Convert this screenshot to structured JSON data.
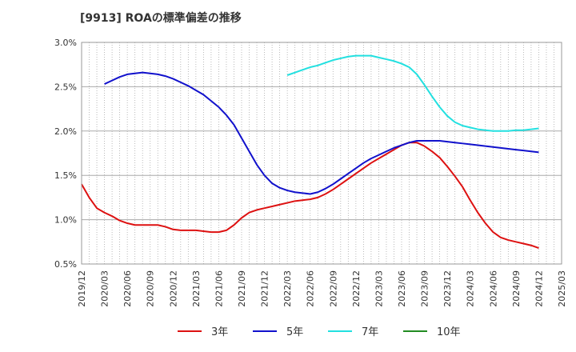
{
  "chart_data": {
    "type": "line",
    "title": "[9913]  ROAの標準偏差の推移",
    "xlabel": "",
    "ylabel": "",
    "x_range": [
      "2019-12",
      "2025-03"
    ],
    "ylim": [
      0.5,
      3.0
    ],
    "y_ticks": [
      {
        "value": 0.5,
        "label": "0.5%"
      },
      {
        "value": 1.0,
        "label": "1.0%"
      },
      {
        "value": 1.5,
        "label": "1.5%"
      },
      {
        "value": 2.0,
        "label": "2.0%"
      },
      {
        "value": 2.5,
        "label": "2.5%"
      },
      {
        "value": 3.0,
        "label": "3.0%"
      }
    ],
    "x_ticks": [
      "2019/12",
      "2020/03",
      "2020/06",
      "2020/09",
      "2020/12",
      "2021/03",
      "2021/06",
      "2021/09",
      "2021/12",
      "2022/03",
      "2022/06",
      "2022/09",
      "2022/12",
      "2023/03",
      "2023/06",
      "2023/09",
      "2023/12",
      "2024/03",
      "2024/06",
      "2024/09",
      "2024/12",
      "2025/03"
    ],
    "grid": true,
    "legend_position": "bottom",
    "series": [
      {
        "name": "3年",
        "color": "#dd1111",
        "points": [
          [
            "2019-12",
            1.4
          ],
          [
            "2020-01",
            1.25
          ],
          [
            "2020-02",
            1.13
          ],
          [
            "2020-03",
            1.08
          ],
          [
            "2020-04",
            1.04
          ],
          [
            "2020-05",
            0.99
          ],
          [
            "2020-06",
            0.96
          ],
          [
            "2020-07",
            0.94
          ],
          [
            "2020-08",
            0.94
          ],
          [
            "2020-09",
            0.94
          ],
          [
            "2020-10",
            0.94
          ],
          [
            "2020-11",
            0.92
          ],
          [
            "2020-12",
            0.89
          ],
          [
            "2021-01",
            0.88
          ],
          [
            "2021-02",
            0.88
          ],
          [
            "2021-03",
            0.88
          ],
          [
            "2021-04",
            0.87
          ],
          [
            "2021-05",
            0.86
          ],
          [
            "2021-06",
            0.86
          ],
          [
            "2021-07",
            0.88
          ],
          [
            "2021-08",
            0.94
          ],
          [
            "2021-09",
            1.02
          ],
          [
            "2021-10",
            1.08
          ],
          [
            "2021-11",
            1.11
          ],
          [
            "2021-12",
            1.13
          ],
          [
            "2022-01",
            1.15
          ],
          [
            "2022-02",
            1.17
          ],
          [
            "2022-03",
            1.19
          ],
          [
            "2022-04",
            1.21
          ],
          [
            "2022-05",
            1.22
          ],
          [
            "2022-06",
            1.23
          ],
          [
            "2022-07",
            1.25
          ],
          [
            "2022-08",
            1.29
          ],
          [
            "2022-09",
            1.34
          ],
          [
            "2022-10",
            1.4
          ],
          [
            "2022-11",
            1.46
          ],
          [
            "2022-12",
            1.52
          ],
          [
            "2023-01",
            1.58
          ],
          [
            "2023-02",
            1.64
          ],
          [
            "2023-03",
            1.69
          ],
          [
            "2023-04",
            1.74
          ],
          [
            "2023-05",
            1.79
          ],
          [
            "2023-06",
            1.84
          ],
          [
            "2023-07",
            1.87
          ],
          [
            "2023-08",
            1.87
          ],
          [
            "2023-09",
            1.83
          ],
          [
            "2023-10",
            1.77
          ],
          [
            "2023-11",
            1.7
          ],
          [
            "2023-12",
            1.6
          ],
          [
            "2024-01",
            1.49
          ],
          [
            "2024-02",
            1.37
          ],
          [
            "2024-03",
            1.22
          ],
          [
            "2024-04",
            1.08
          ],
          [
            "2024-05",
            0.96
          ],
          [
            "2024-06",
            0.86
          ],
          [
            "2024-07",
            0.8
          ],
          [
            "2024-08",
            0.77
          ],
          [
            "2024-09",
            0.75
          ],
          [
            "2024-10",
            0.73
          ],
          [
            "2024-11",
            0.71
          ],
          [
            "2024-12",
            0.68
          ]
        ]
      },
      {
        "name": "5年",
        "color": "#1111cc",
        "points": [
          [
            "2020-03",
            2.53
          ],
          [
            "2020-04",
            2.57
          ],
          [
            "2020-05",
            2.61
          ],
          [
            "2020-06",
            2.64
          ],
          [
            "2020-07",
            2.65
          ],
          [
            "2020-08",
            2.66
          ],
          [
            "2020-09",
            2.65
          ],
          [
            "2020-10",
            2.64
          ],
          [
            "2020-11",
            2.62
          ],
          [
            "2020-12",
            2.59
          ],
          [
            "2021-01",
            2.55
          ],
          [
            "2021-02",
            2.51
          ],
          [
            "2021-03",
            2.46
          ],
          [
            "2021-04",
            2.41
          ],
          [
            "2021-05",
            2.34
          ],
          [
            "2021-06",
            2.27
          ],
          [
            "2021-07",
            2.18
          ],
          [
            "2021-08",
            2.07
          ],
          [
            "2021-09",
            1.92
          ],
          [
            "2021-10",
            1.77
          ],
          [
            "2021-11",
            1.62
          ],
          [
            "2021-12",
            1.5
          ],
          [
            "2022-01",
            1.41
          ],
          [
            "2022-02",
            1.36
          ],
          [
            "2022-03",
            1.33
          ],
          [
            "2022-04",
            1.31
          ],
          [
            "2022-05",
            1.3
          ],
          [
            "2022-06",
            1.29
          ],
          [
            "2022-07",
            1.31
          ],
          [
            "2022-08",
            1.35
          ],
          [
            "2022-09",
            1.4
          ],
          [
            "2022-10",
            1.46
          ],
          [
            "2022-11",
            1.52
          ],
          [
            "2022-12",
            1.58
          ],
          [
            "2023-01",
            1.64
          ],
          [
            "2023-02",
            1.69
          ],
          [
            "2023-03",
            1.73
          ],
          [
            "2023-04",
            1.77
          ],
          [
            "2023-05",
            1.81
          ],
          [
            "2023-06",
            1.84
          ],
          [
            "2023-07",
            1.87
          ],
          [
            "2023-08",
            1.89
          ],
          [
            "2023-09",
            1.89
          ],
          [
            "2023-10",
            1.89
          ],
          [
            "2023-11",
            1.89
          ],
          [
            "2023-12",
            1.88
          ],
          [
            "2024-01",
            1.87
          ],
          [
            "2024-02",
            1.86
          ],
          [
            "2024-03",
            1.85
          ],
          [
            "2024-04",
            1.84
          ],
          [
            "2024-05",
            1.83
          ],
          [
            "2024-06",
            1.82
          ],
          [
            "2024-07",
            1.81
          ],
          [
            "2024-08",
            1.8
          ],
          [
            "2024-09",
            1.79
          ],
          [
            "2024-10",
            1.78
          ],
          [
            "2024-11",
            1.77
          ],
          [
            "2024-12",
            1.76
          ]
        ]
      },
      {
        "name": "7年",
        "color": "#22e0e0",
        "points": [
          [
            "2022-03",
            2.63
          ],
          [
            "2022-04",
            2.66
          ],
          [
            "2022-05",
            2.69
          ],
          [
            "2022-06",
            2.72
          ],
          [
            "2022-07",
            2.74
          ],
          [
            "2022-08",
            2.77
          ],
          [
            "2022-09",
            2.8
          ],
          [
            "2022-10",
            2.82
          ],
          [
            "2022-11",
            2.84
          ],
          [
            "2022-12",
            2.85
          ],
          [
            "2023-01",
            2.85
          ],
          [
            "2023-02",
            2.85
          ],
          [
            "2023-03",
            2.83
          ],
          [
            "2023-04",
            2.81
          ],
          [
            "2023-05",
            2.79
          ],
          [
            "2023-06",
            2.76
          ],
          [
            "2023-07",
            2.72
          ],
          [
            "2023-08",
            2.64
          ],
          [
            "2023-09",
            2.52
          ],
          [
            "2023-10",
            2.39
          ],
          [
            "2023-11",
            2.27
          ],
          [
            "2023-12",
            2.17
          ],
          [
            "2024-01",
            2.1
          ],
          [
            "2024-02",
            2.06
          ],
          [
            "2024-03",
            2.04
          ],
          [
            "2024-04",
            2.02
          ],
          [
            "2024-05",
            2.01
          ],
          [
            "2024-06",
            2.0
          ],
          [
            "2024-07",
            2.0
          ],
          [
            "2024-08",
            2.0
          ],
          [
            "2024-09",
            2.01
          ],
          [
            "2024-10",
            2.01
          ],
          [
            "2024-11",
            2.02
          ],
          [
            "2024-12",
            2.03
          ]
        ]
      },
      {
        "name": "10年",
        "color": "#228b22",
        "points": []
      }
    ]
  }
}
